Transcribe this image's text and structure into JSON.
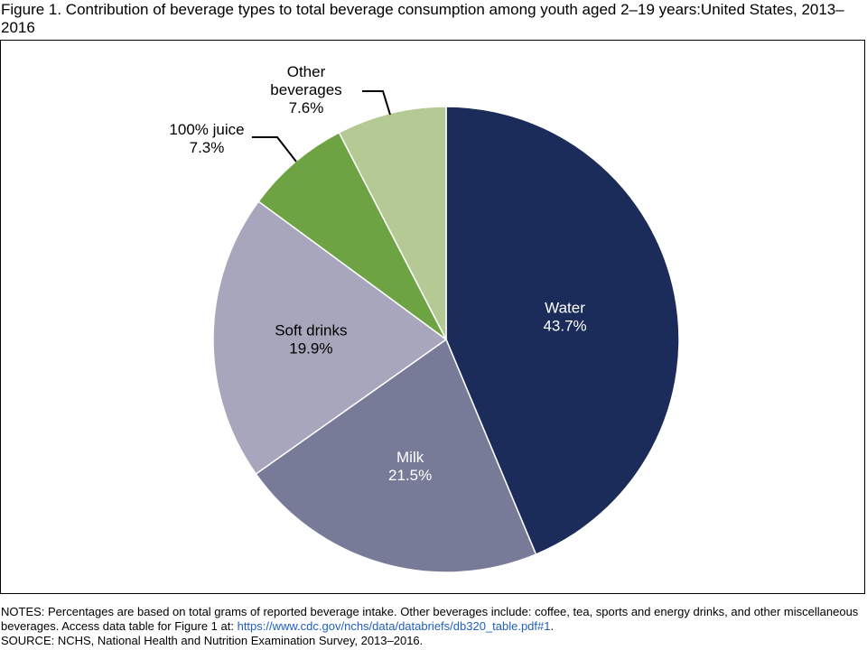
{
  "figure": {
    "title": "Figure 1. Contribution of beverage types to total beverage consumption among youth aged 2–19 years:United States, 2013–2016"
  },
  "chart_data": {
    "type": "pie",
    "unit": "percent",
    "slices": [
      {
        "label": "Water",
        "value": 43.7,
        "value_label": "43.7%",
        "color": "#1c2c5a"
      },
      {
        "label": "Milk",
        "value": 21.5,
        "value_label": "21.5%",
        "color": "#787b98"
      },
      {
        "label": "Soft drinks",
        "value": 19.9,
        "value_label": "19.9%",
        "color": "#a7a6bc"
      },
      {
        "label": "100% juice",
        "value": 7.3,
        "value_label": "7.3%",
        "color": "#6da343"
      },
      {
        "label": "Other beverages",
        "value": 7.6,
        "value_label": "7.6%",
        "color": "#b4c994"
      }
    ],
    "start_angle": "12 o'clock",
    "direction": "clockwise",
    "legend": "none (direct labels)"
  },
  "notes": {
    "line1": "NOTES: Percentages are based on total grams of reported beverage intake. Other beverages include: coffee, tea, sports and energy drinks, and other miscellaneous beverages. Access data table for Figure 1 at: ",
    "link_text": "https://www.cdc.gov/nchs/data/databriefs/db320_table.pdf#1",
    "line1_end": ".",
    "source": "SOURCE: NCHS, National Health and Nutrition Examination Survey, 2013–2016."
  },
  "colors": {
    "link": "#1f5fbf",
    "frame_border": "#000000",
    "slice_edge": "#ffffff"
  }
}
